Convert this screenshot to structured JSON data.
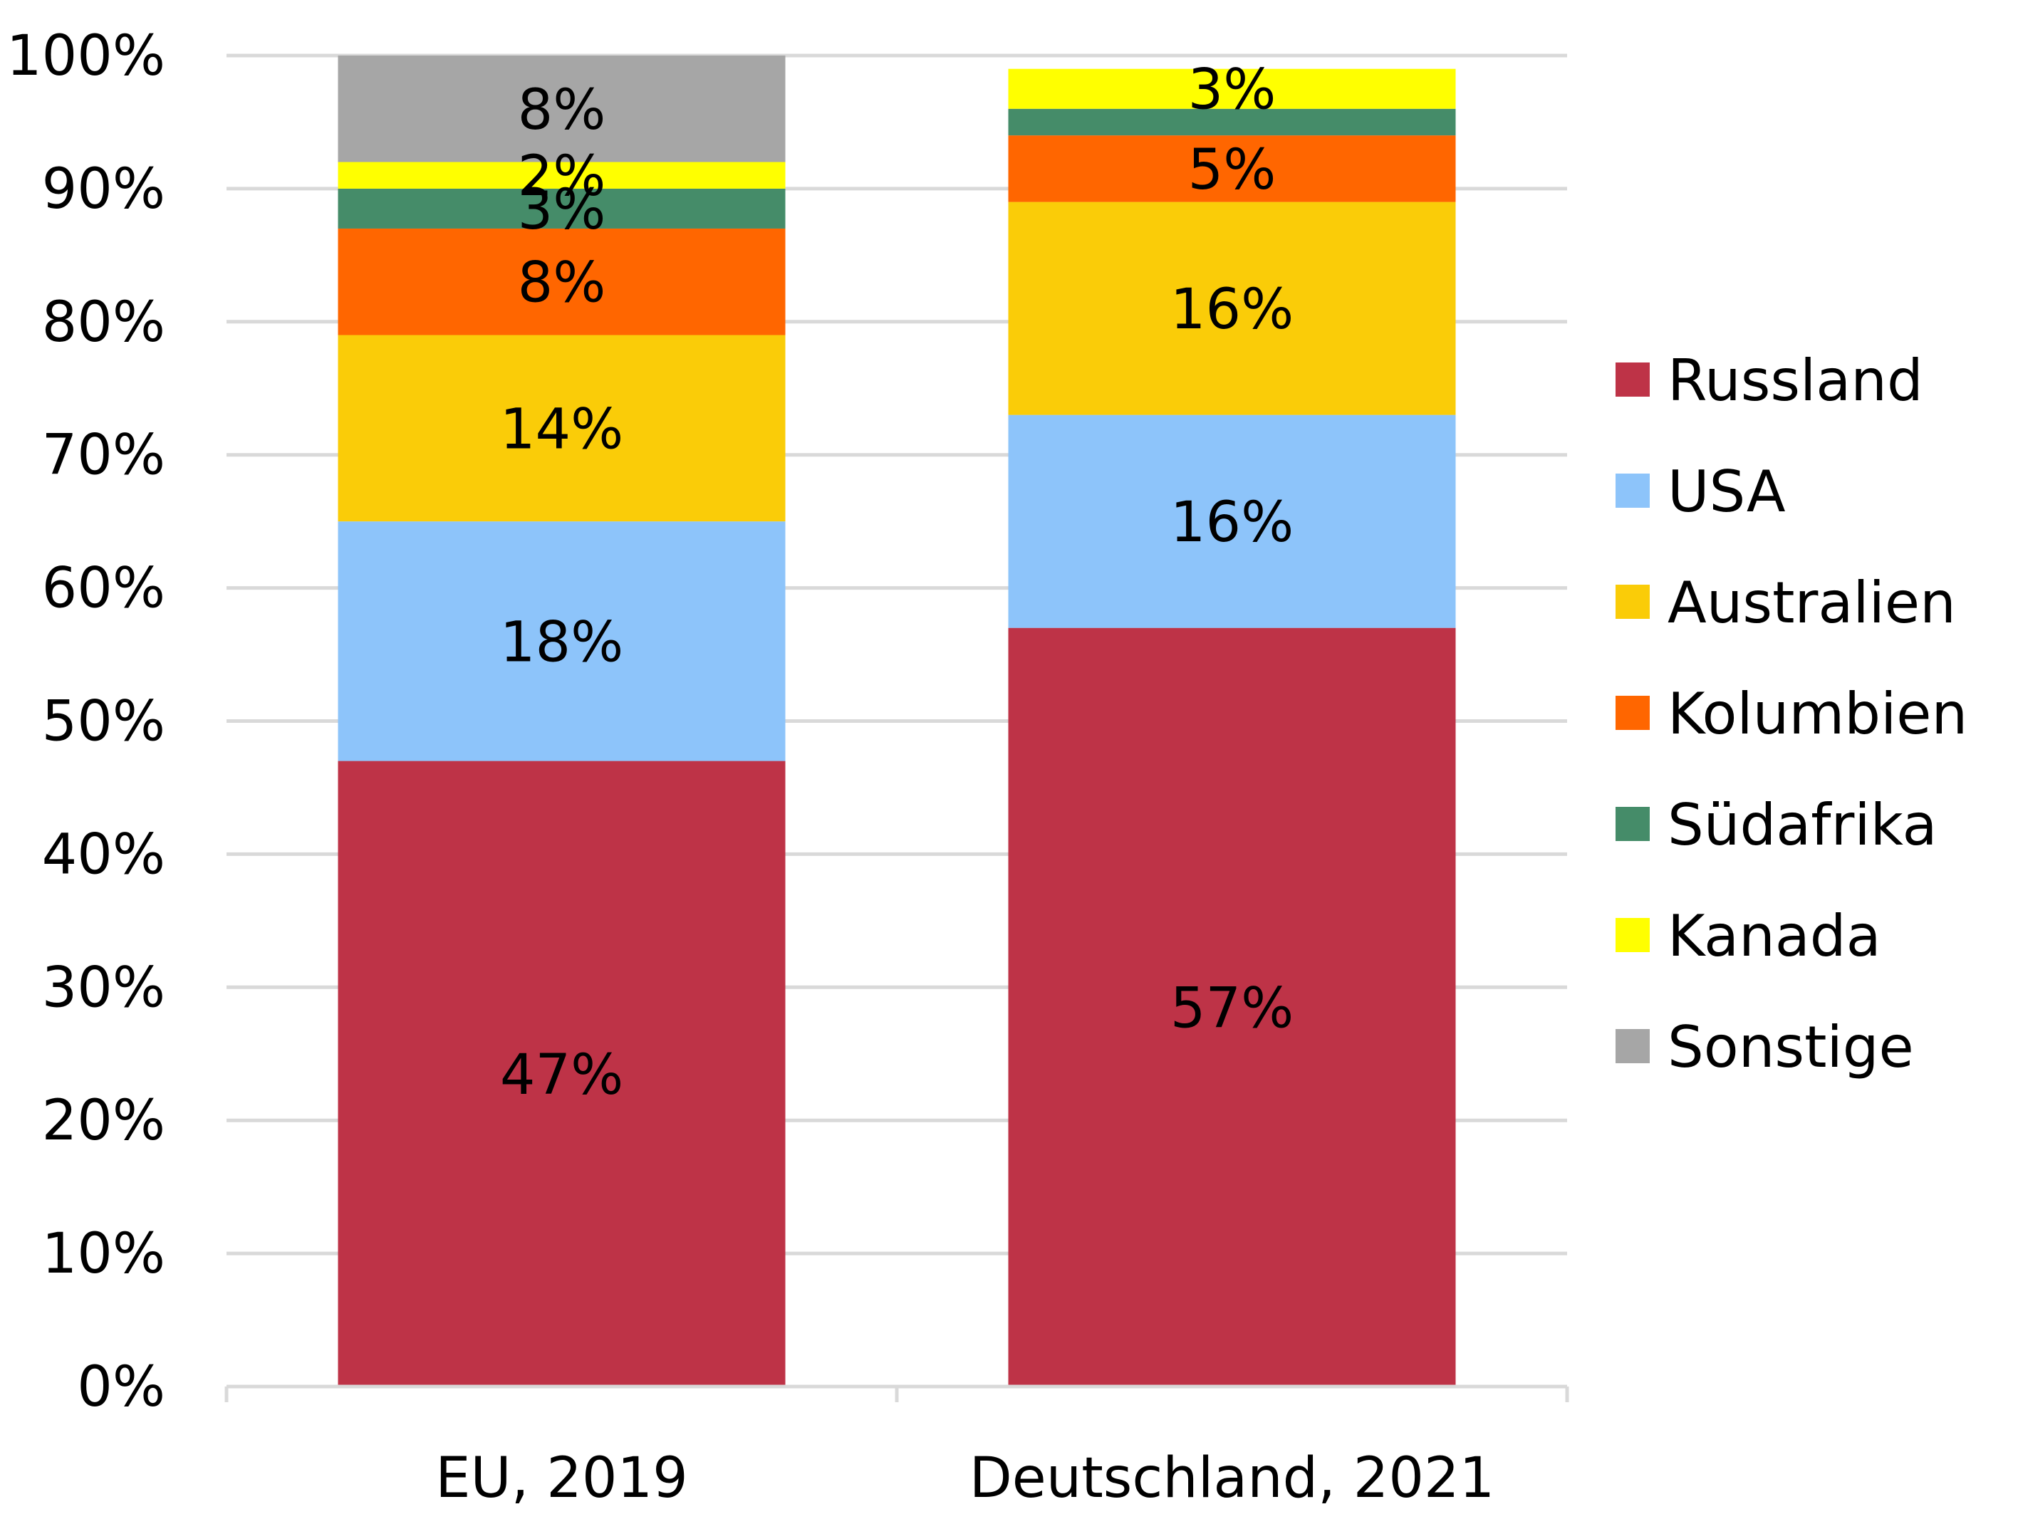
{
  "chart_data": {
    "type": "bar",
    "stacked": true,
    "categories": [
      "EU, 2019",
      "Deutschland, 2021"
    ],
    "series": [
      {
        "name": "Russland",
        "color": "#BE3347",
        "values": [
          47,
          57
        ],
        "labels": [
          "47%",
          "57%"
        ]
      },
      {
        "name": "USA",
        "color": "#8DC4FA",
        "values": [
          18,
          16
        ],
        "labels": [
          "18%",
          "16%"
        ]
      },
      {
        "name": "Australien",
        "color": "#FACC08",
        "values": [
          14,
          16
        ],
        "labels": [
          "14%",
          "16%"
        ]
      },
      {
        "name": "Kolumbien",
        "color": "#FF6600",
        "values": [
          8,
          5
        ],
        "labels": [
          "8%",
          "5%"
        ]
      },
      {
        "name": "Südafrika",
        "color": "#458C69",
        "values": [
          3,
          2
        ],
        "labels": [
          "3%",
          ""
        ]
      },
      {
        "name": "Kanada",
        "color": "#FFFF00",
        "values": [
          2,
          3
        ],
        "labels": [
          "2%",
          "3%"
        ]
      },
      {
        "name": "Sonstige",
        "color": "#A6A6A6",
        "values": [
          8,
          0
        ],
        "labels": [
          "8%",
          ""
        ]
      }
    ],
    "ylim": [
      0,
      100
    ],
    "yticks": [
      "0%",
      "10%",
      "20%",
      "30%",
      "40%",
      "50%",
      "60%",
      "70%",
      "80%",
      "90%",
      "100%"
    ],
    "grid": true,
    "legend": "right",
    "title": "",
    "xlabel": "",
    "ylabel": ""
  }
}
